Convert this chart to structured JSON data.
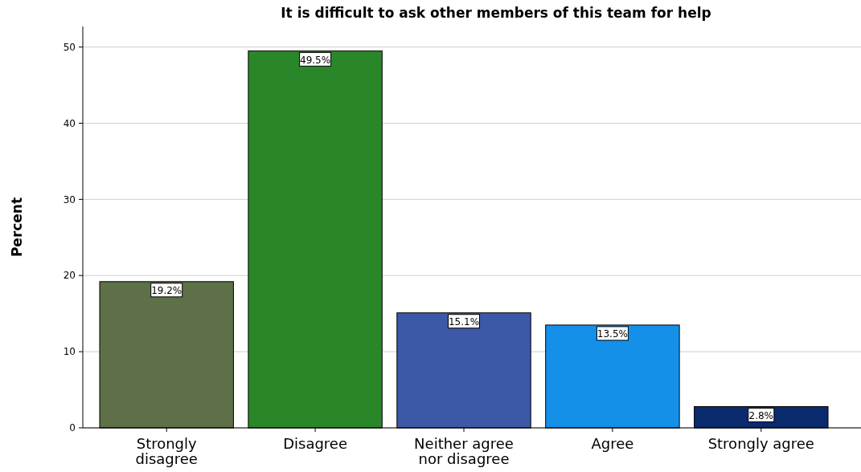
{
  "chart_data": {
    "type": "bar",
    "title": "It is difficult to ask other members of this team for help",
    "ylabel": "Percent",
    "categories": [
      "Strongly disagree",
      "Disagree",
      "Neither agree nor disagree",
      "Agree",
      "Strongly agree"
    ],
    "values": [
      19.2,
      49.5,
      15.1,
      13.5,
      2.8
    ],
    "colors": [
      "#5d7048",
      "#2a8729",
      "#3e58a8",
      "#1590e8",
      "#0a2a6e"
    ],
    "value_labels": [
      "19.2%",
      "49.5%",
      "15.1%",
      "13.5%",
      "2.8%"
    ],
    "ylim": [
      0,
      52.7
    ],
    "yticks": [
      0,
      10,
      20,
      30,
      40,
      50
    ],
    "grid": "y"
  }
}
